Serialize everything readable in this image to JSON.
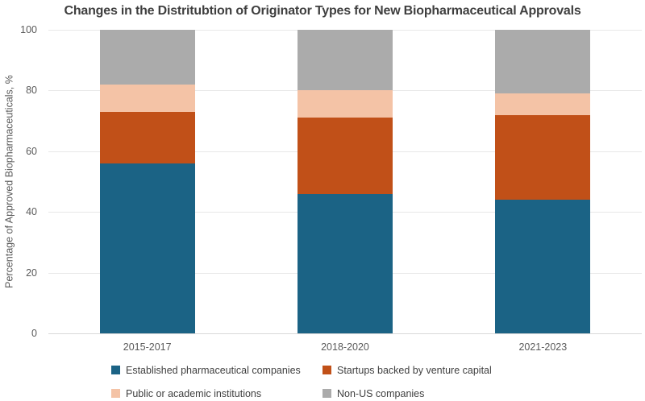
{
  "chart_data": {
    "type": "bar",
    "stacked": true,
    "title": "Changes in the Distritubtion of Originator Types for New Biopharmaceutical Approvals",
    "ylabel": "Percentage of Approved Biopharmaceuticals, %",
    "xlabel": "",
    "ylim": [
      0,
      100
    ],
    "yticks": [
      0,
      20,
      40,
      60,
      80,
      100
    ],
    "grid": true,
    "legend_position": "bottom",
    "categories": [
      "2015-2017",
      "2018-2020",
      "2021-2023"
    ],
    "series": [
      {
        "name": "Established pharmaceutical companies",
        "color": "#1B6385",
        "values": [
          56,
          46,
          44
        ]
      },
      {
        "name": "Startups backed by venture capital",
        "color": "#C15018",
        "values": [
          17,
          25,
          28
        ]
      },
      {
        "name": "Public or academic institutions",
        "color": "#F4C3A6",
        "values": [
          9,
          9,
          7
        ]
      },
      {
        "name": "Non-US companies",
        "color": "#ABABAB",
        "values": [
          18,
          20,
          21
        ]
      }
    ],
    "colors": {
      "title_text": "#3F3F3F",
      "axis_text": "#595959",
      "legend_text": "#404040",
      "gridline": "#E8E8E8",
      "baseline": "#D9D9D9"
    }
  }
}
